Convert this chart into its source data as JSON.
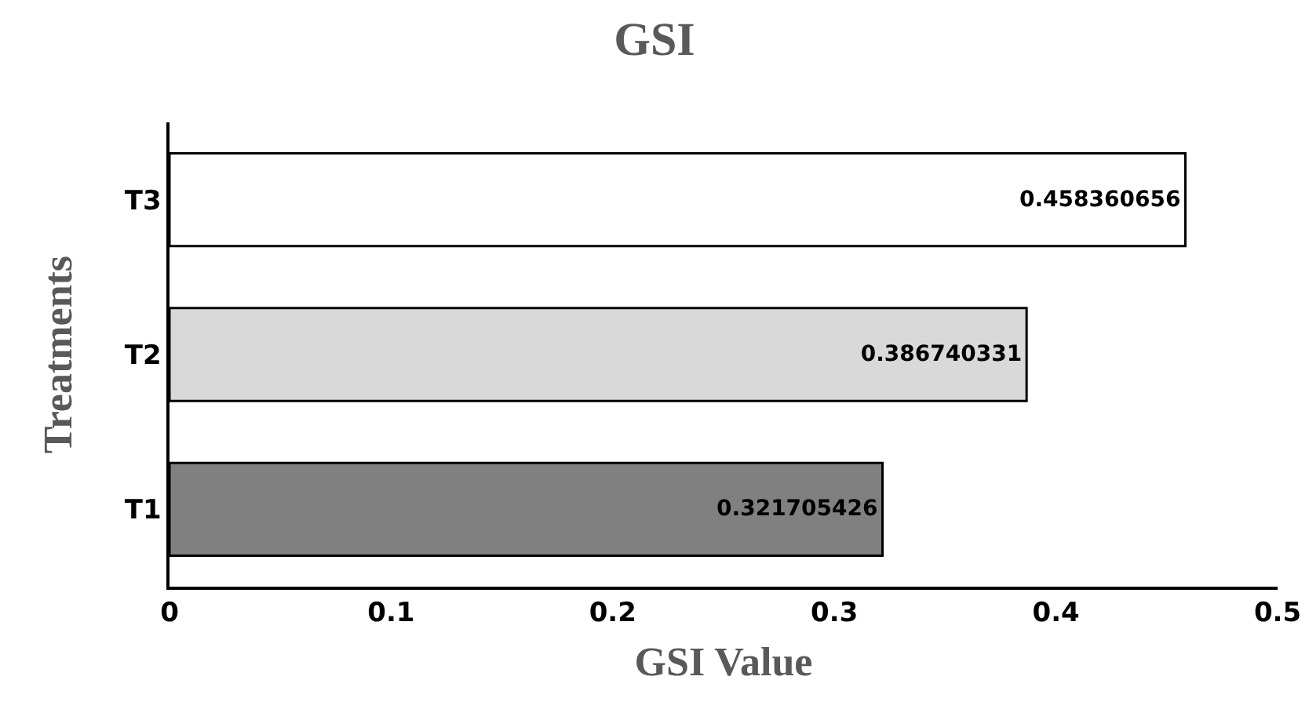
{
  "chart_data": {
    "type": "bar",
    "orientation": "horizontal",
    "title": "GSI",
    "xlabel": "GSI Value",
    "ylabel": "Treatments",
    "categories": [
      "T3",
      "T2",
      "T1"
    ],
    "values": [
      0.458360656,
      0.386740331,
      0.321705426
    ],
    "colors": [
      "#ffffff",
      "#d9d9d9",
      "#808080"
    ],
    "data_labels": true,
    "xlim": [
      0,
      0.5
    ],
    "xticks": [
      0,
      0.1,
      0.2,
      0.3,
      0.4,
      0.5
    ],
    "grid": false
  }
}
